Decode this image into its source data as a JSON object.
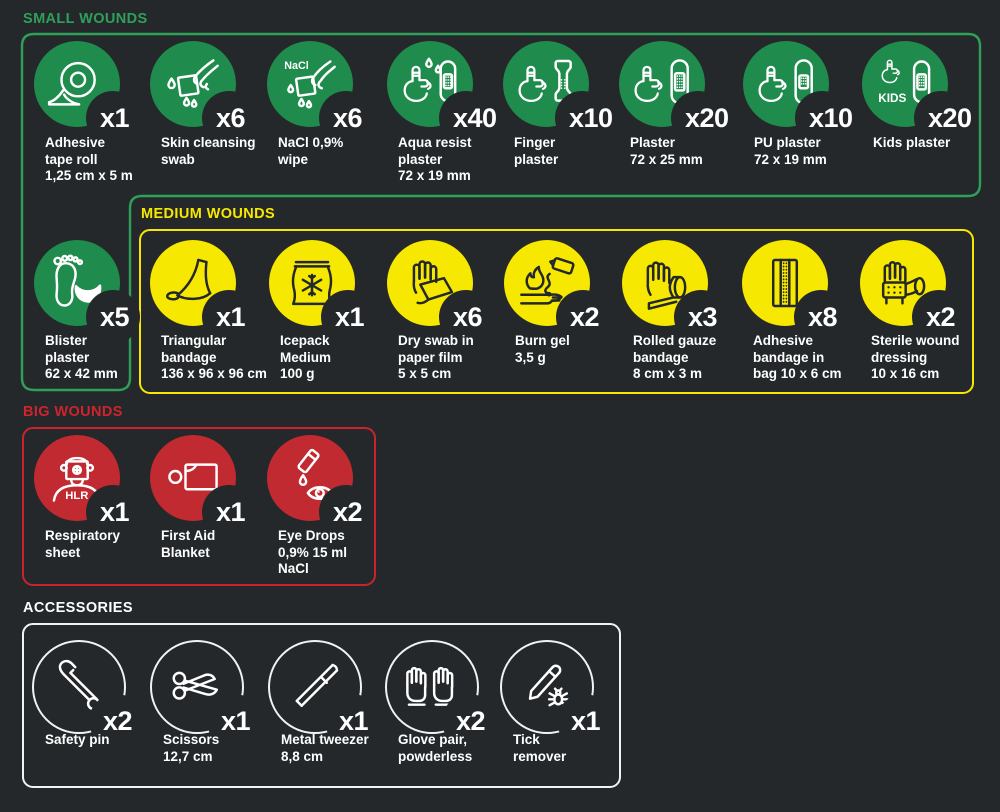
{
  "colors": {
    "background": "#24282b",
    "green_fill": "#1f8b4c",
    "green_line": "#2fa05a",
    "yellow": "#f6e800",
    "red_fill": "#c02a30",
    "red_line": "#c9242c",
    "white": "#ffffff"
  },
  "sections": [
    {
      "id": "small-wounds",
      "title": "SMALL WOUNDS",
      "items": [
        {
          "icon": "tape-roll-icon",
          "qty": "x1",
          "label_lines": [
            "Adhesive",
            "tape roll",
            "1,25 cm x 5 m"
          ]
        },
        {
          "icon": "cleansing-swab-icon",
          "qty": "x6",
          "label_lines": [
            "Skin cleansing",
            "swab"
          ]
        },
        {
          "icon": "nacl-wipe-icon",
          "qty": "x6",
          "icon_text": "NaCl",
          "label_lines": [
            "NaCl 0,9%",
            "wipe"
          ]
        },
        {
          "icon": "aqua-plaster-icon",
          "qty": "x40",
          "label_lines": [
            "Aqua resist",
            "plaster",
            "72 x 19 mm"
          ]
        },
        {
          "icon": "finger-plaster-icon",
          "qty": "x10",
          "label_lines": [
            "Finger",
            "plaster"
          ]
        },
        {
          "icon": "plaster-icon",
          "qty": "x20",
          "label_lines": [
            "Plaster",
            "72 x 25 mm"
          ]
        },
        {
          "icon": "pu-plaster-icon",
          "qty": "x10",
          "label_lines": [
            "PU plaster",
            "72 x 19 mm"
          ]
        },
        {
          "icon": "kids-plaster-icon",
          "qty": "x20",
          "icon_text": "KIDS",
          "label_lines": [
            "Kids plaster"
          ]
        },
        {
          "icon": "blister-plaster-icon",
          "qty": "x5",
          "label_lines": [
            "Blister",
            "plaster",
            "62 x 42 mm"
          ]
        }
      ]
    },
    {
      "id": "medium-wounds",
      "title": "MEDIUM WOUNDS",
      "items": [
        {
          "icon": "triangular-bandage-icon",
          "qty": "x1",
          "label_lines": [
            "Triangular",
            "bandage",
            "136 x 96 x 96 cm"
          ]
        },
        {
          "icon": "icepack-icon",
          "qty": "x1",
          "label_lines": [
            "Icepack",
            "Medium",
            "100 g"
          ]
        },
        {
          "icon": "dry-swab-icon",
          "qty": "x6",
          "label_lines": [
            "Dry swab in",
            "paper film",
            "5 x 5 cm"
          ]
        },
        {
          "icon": "burn-gel-icon",
          "qty": "x2",
          "label_lines": [
            "Burn gel",
            "3,5 g"
          ]
        },
        {
          "icon": "rolled-gauze-icon",
          "qty": "x3",
          "label_lines": [
            "Rolled gauze",
            "bandage",
            "8 cm x 3 m"
          ]
        },
        {
          "icon": "adhesive-bag-icon",
          "qty": "x8",
          "label_lines": [
            "Adhesive",
            "bandage in",
            "bag 10 x 6 cm"
          ]
        },
        {
          "icon": "sterile-dressing-icon",
          "qty": "x2",
          "label_lines": [
            "Sterile wound",
            "dressing",
            "10 x 16 cm"
          ]
        }
      ]
    },
    {
      "id": "big-wounds",
      "title": "BIG WOUNDS",
      "items": [
        {
          "icon": "respiratory-sheet-icon",
          "qty": "x1",
          "icon_text": "HLR",
          "label_lines": [
            "Respiratory",
            "sheet"
          ]
        },
        {
          "icon": "first-aid-blanket-icon",
          "qty": "x1",
          "label_lines": [
            "First Aid",
            "Blanket"
          ]
        },
        {
          "icon": "eye-drops-icon",
          "qty": "x2",
          "label_lines": [
            "Eye Drops",
            "0,9% 15 ml",
            "NaCl"
          ]
        }
      ]
    },
    {
      "id": "accessories",
      "title": "ACCESSORIES",
      "items": [
        {
          "icon": "safety-pin-icon",
          "qty": "x2",
          "label_lines": [
            "Safety pin"
          ]
        },
        {
          "icon": "scissors-icon",
          "qty": "x1",
          "label_lines": [
            "Scissors",
            "12,7 cm"
          ]
        },
        {
          "icon": "tweezer-icon",
          "qty": "x1",
          "label_lines": [
            "Metal tweezer",
            "8,8 cm"
          ]
        },
        {
          "icon": "gloves-icon",
          "qty": "x2",
          "label_lines": [
            "Glove pair,",
            "powderless"
          ]
        },
        {
          "icon": "tick-remover-icon",
          "qty": "x1",
          "label_lines": [
            "Tick",
            "remover"
          ]
        }
      ]
    }
  ]
}
